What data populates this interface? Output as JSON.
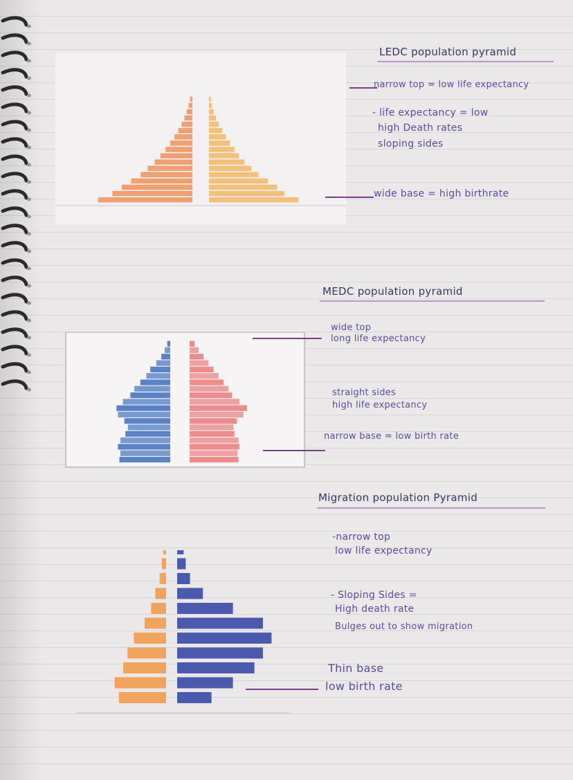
{
  "notes": {
    "ledc": {
      "title": "LEDC population pyramid",
      "line1": "narrow top = low life expectancy",
      "line2": "- life expectancy = low",
      "line3": "high Death rates",
      "line4": "sloping sides",
      "line5": "wide base = high birthrate"
    },
    "medc": {
      "title": "MEDC population pyramid",
      "line1": "wide top",
      "line2": "long life expectancy",
      "line3": "straight sides",
      "line4": "high life expectancy",
      "line5": "narrow base = low birth rate"
    },
    "migration": {
      "title": "Migration population Pyramid",
      "line1": "-narrow top",
      "line2": "low life expectancy",
      "line3": "- Sloping Sides =",
      "line4": "High death rate",
      "line5": "Bulges out to show migration",
      "line6": "Thin base",
      "line7": "low birth rate"
    }
  },
  "colors": {
    "ledc_bar": "#f2a070",
    "ledc_bar_right": "#f6c07a",
    "medc_left": "#5a82c8",
    "medc_right": "#ee8c8c",
    "mig_left": "#f3a45a",
    "mig_right": "#4a5ab0",
    "pen": "#7a3d8a"
  },
  "chart_data": [
    {
      "type": "bar",
      "name": "ledc",
      "male": [
        2.0,
        1.7,
        1.5,
        1.3,
        1.1,
        0.95,
        0.8,
        0.68,
        0.57,
        0.47,
        0.38,
        0.3,
        0.23,
        0.17,
        0.12,
        0.08,
        0.05
      ],
      "female": [
        1.9,
        1.6,
        1.45,
        1.25,
        1.05,
        0.9,
        0.75,
        0.64,
        0.54,
        0.45,
        0.36,
        0.28,
        0.21,
        0.15,
        0.1,
        0.06,
        0.04
      ]
    },
    {
      "type": "bar",
      "name": "medc",
      "male": [
        10.2,
        10.0,
        10.5,
        10.0,
        9.0,
        8.5,
        9.2,
        10.5,
        10.8,
        9.5,
        8.0,
        7.2,
        6.0,
        4.8,
        4.0,
        2.8,
        1.8,
        1.1,
        0.6
      ],
      "female": [
        9.8,
        9.6,
        10.0,
        9.8,
        9.0,
        8.8,
        9.5,
        10.8,
        11.5,
        10.0,
        8.5,
        7.8,
        6.8,
        5.8,
        4.8,
        3.8,
        2.8,
        1.8,
        1.0
      ]
    },
    {
      "type": "bar",
      "name": "migration",
      "females": [
        1100,
        1200,
        1000,
        900,
        750,
        500,
        350,
        250,
        150,
        100,
        70,
        50,
        40,
        30,
        20,
        15
      ],
      "males": [
        800,
        1300,
        1800,
        2000,
        2200,
        2000,
        1300,
        600,
        300,
        200,
        150,
        120,
        100,
        80,
        60,
        40
      ]
    }
  ]
}
